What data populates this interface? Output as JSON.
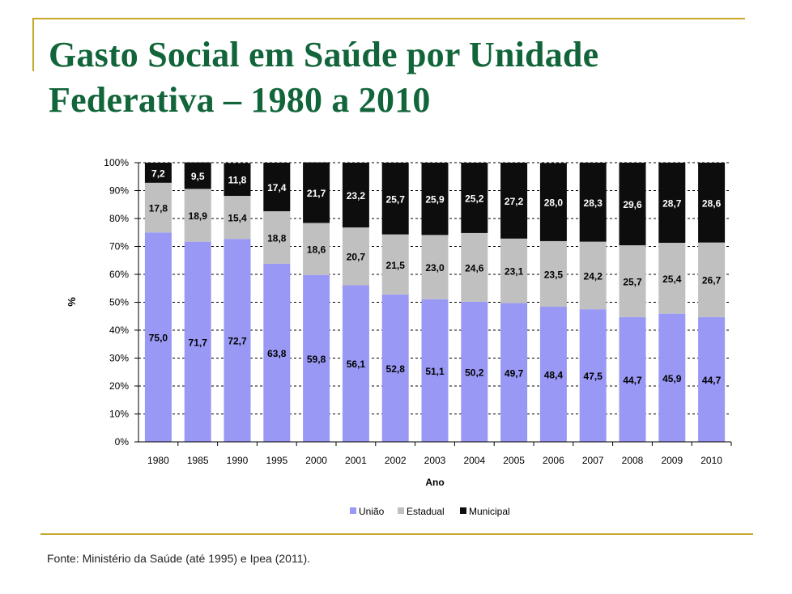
{
  "title": {
    "line1": "Gasto Social em Saúde por Unidade",
    "line2": "Federativa – 1980 a 2010"
  },
  "source": "Fonte: Ministério da Saúde (até 1995) e Ipea (2011).",
  "colors": {
    "title": "#12653a",
    "rule": "#c9a72a",
    "uniao": "#9999f5",
    "estadual": "#c0c0c0",
    "municipal": "#0d0d0d"
  },
  "chart_data": {
    "type": "bar",
    "stacked": true,
    "percent": true,
    "categories": [
      "1980",
      "1985",
      "1990",
      "1995",
      "2000",
      "2001",
      "2002",
      "2003",
      "2004",
      "2005",
      "2006",
      "2007",
      "2008",
      "2009",
      "2010"
    ],
    "series": [
      {
        "name": "União",
        "values": [
          75.0,
          71.7,
          72.7,
          63.8,
          59.8,
          56.1,
          52.8,
          51.1,
          50.2,
          49.7,
          48.4,
          47.5,
          44.7,
          45.9,
          44.7
        ],
        "labels": [
          "75,0",
          "71,7",
          "72,7",
          "63,8",
          "59,8",
          "56,1",
          "52,8",
          "51,1",
          "50,2",
          "49,7",
          "48,4",
          "47,5",
          "44,7",
          "45,9",
          "44,7"
        ]
      },
      {
        "name": "Estadual",
        "values": [
          17.8,
          18.9,
          15.4,
          18.8,
          18.6,
          20.7,
          21.5,
          23.0,
          24.6,
          23.1,
          23.5,
          24.2,
          25.7,
          25.4,
          26.7
        ],
        "labels": [
          "17,8",
          "18,9",
          "15,4",
          "18,8",
          "18,6",
          "20,7",
          "21,5",
          "23,0",
          "24,6",
          "23,1",
          "23,5",
          "24,2",
          "25,7",
          "25,4",
          "26,7"
        ]
      },
      {
        "name": "Municipal",
        "values": [
          7.2,
          9.5,
          11.8,
          17.4,
          21.7,
          23.2,
          25.7,
          25.9,
          25.2,
          27.2,
          28.0,
          28.3,
          29.6,
          28.7,
          28.6
        ],
        "labels": [
          "7,2",
          "9,5",
          "11,8",
          "17,4",
          "21,7",
          "23,2",
          "25,7",
          "25,9",
          "25,2",
          "27,2",
          "28,0",
          "28,3",
          "29,6",
          "28,7",
          "28,6"
        ]
      }
    ],
    "xlabel": "Ano",
    "ylabel": "%",
    "ylim": [
      0,
      100
    ],
    "yticks": [
      "0%",
      "10%",
      "20%",
      "30%",
      "40%",
      "50%",
      "60%",
      "70%",
      "80%",
      "90%",
      "100%"
    ],
    "grid": true,
    "legend": "bottom"
  }
}
